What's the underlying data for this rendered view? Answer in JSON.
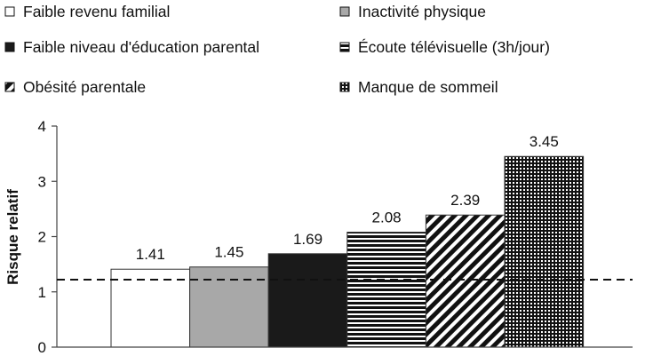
{
  "chart_data": {
    "type": "bar",
    "title": "",
    "xlabel": "",
    "ylabel": "Risque relatif",
    "ylim": [
      0,
      4
    ],
    "yticks": [
      0,
      1,
      2,
      3,
      4
    ],
    "reference_line": 1.22,
    "legend_position": "top",
    "categories": [
      "Faible revenu familial",
      "Inactivité physique",
      "Faible niveau d'éducation parental",
      "Écoute télévisuelle (3h/jour)",
      "Obésité parentale",
      "Manque de sommeil"
    ],
    "values": [
      1.41,
      1.45,
      1.69,
      2.08,
      2.39,
      3.45
    ],
    "value_labels": [
      "1.41",
      "1.45",
      "1.69",
      "2.08",
      "2.39",
      "3.45"
    ],
    "patterns": [
      "white",
      "gray",
      "black",
      "horizontal-stripes",
      "diagonal-stripes",
      "grid"
    ],
    "colors": {
      "gray": "#a8a8a8",
      "black": "#1a1a1a",
      "axis": "#444444"
    }
  }
}
